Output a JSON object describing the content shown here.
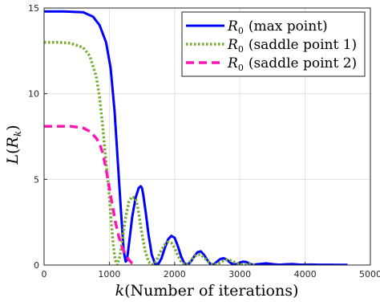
{
  "chart_data": {
    "type": "line",
    "xlabel_parts": {
      "var": "k",
      "rest": "(Number of iterations)"
    },
    "ylabel_parts": {
      "var": "L",
      "open": "(",
      "sub_var": "R",
      "sub": "k",
      "close": ")"
    },
    "xlim": [
      0,
      5000
    ],
    "ylim": [
      0,
      15
    ],
    "xticks": [
      0,
      1000,
      2000,
      3000,
      4000,
      5000
    ],
    "yticks": [
      0,
      5,
      10,
      15
    ],
    "grid": true,
    "legend_position": "top-right",
    "series": [
      {
        "legend": {
          "var": "R",
          "sub": "0",
          "text": "(max point)"
        },
        "color": "#0000ff",
        "style": "solid",
        "x": [
          0,
          300,
          600,
          750,
          850,
          950,
          1020,
          1080,
          1130,
          1180,
          1220,
          1250,
          1270,
          1300,
          1350,
          1400,
          1450,
          1480,
          1500,
          1520,
          1560,
          1600,
          1650,
          1700,
          1750,
          1800,
          1850,
          1900,
          1950,
          2000,
          2050,
          2100,
          2150,
          2200,
          2250,
          2300,
          2350,
          2400,
          2450,
          2500,
          2550,
          2600,
          2650,
          2700,
          2750,
          2800,
          2850,
          2900,
          2950,
          3000,
          3050,
          3100,
          3150,
          3200,
          3300,
          3400,
          3500,
          3600,
          3700,
          3800,
          3900,
          4000,
          4100,
          4200,
          4300,
          4400,
          4500,
          4650
        ],
        "y": [
          14.8,
          14.8,
          14.75,
          14.5,
          14.0,
          13.0,
          11.5,
          9.0,
          6.0,
          3.0,
          0.8,
          0.2,
          0.3,
          1.2,
          2.8,
          3.9,
          4.5,
          4.6,
          4.5,
          4.1,
          3.0,
          1.8,
          0.6,
          0.08,
          0.05,
          0.4,
          1.0,
          1.5,
          1.7,
          1.6,
          1.1,
          0.5,
          0.1,
          0.03,
          0.2,
          0.5,
          0.75,
          0.8,
          0.6,
          0.3,
          0.05,
          0.03,
          0.2,
          0.35,
          0.4,
          0.32,
          0.15,
          0.03,
          0.05,
          0.15,
          0.2,
          0.18,
          0.08,
          0.02,
          0.06,
          0.1,
          0.05,
          0.02,
          0.04,
          0.06,
          0.03,
          0.02,
          0.03,
          0.02,
          0.02,
          0.02,
          0.01,
          0.01
        ]
      },
      {
        "legend": {
          "var": "R",
          "sub": "0",
          "text": "(saddle point 1)"
        },
        "color": "#77ac30",
        "style": "dotted",
        "x": [
          0,
          200,
          400,
          600,
          700,
          800,
          850,
          900,
          950,
          1000,
          1030,
          1060,
          1090,
          1120,
          1160,
          1200,
          1250,
          1300,
          1350,
          1400,
          1430,
          1460,
          1500,
          1550,
          1600,
          1650,
          1700,
          1750,
          1800,
          1850,
          1900,
          1950,
          2000,
          2050,
          2100,
          2150,
          2200,
          2250,
          2300,
          2350,
          2400,
          2450,
          2500,
          2550,
          2600,
          2650,
          2700,
          2750,
          2800,
          2850,
          2900,
          2950,
          3000,
          3050,
          3100,
          3150,
          3200,
          3250
        ],
        "y": [
          13.0,
          13.0,
          12.95,
          12.7,
          12.2,
          11.0,
          9.8,
          8.0,
          6.0,
          4.0,
          2.5,
          1.2,
          0.3,
          0.0,
          0.5,
          1.5,
          2.8,
          3.7,
          4.0,
          3.9,
          3.5,
          2.8,
          1.8,
          0.8,
          0.2,
          0.02,
          0.1,
          0.5,
          0.9,
          1.2,
          1.35,
          1.3,
          1.0,
          0.55,
          0.2,
          0.03,
          0.05,
          0.25,
          0.5,
          0.62,
          0.6,
          0.45,
          0.25,
          0.08,
          0.02,
          0.05,
          0.15,
          0.25,
          0.3,
          0.28,
          0.2,
          0.1,
          0.04,
          0.02,
          0.05,
          0.06,
          0.03,
          0.02
        ]
      },
      {
        "legend": {
          "var": "R",
          "sub": "0",
          "text": "(saddle point 2)"
        },
        "color": "#ff14b4",
        "style": "dashed",
        "x": [
          0,
          200,
          400,
          600,
          700,
          800,
          850,
          900,
          950,
          1000,
          1050,
          1100,
          1150,
          1200,
          1250,
          1300,
          1350,
          1400,
          1420
        ],
        "y": [
          8.1,
          8.1,
          8.1,
          8.0,
          7.8,
          7.4,
          7.1,
          6.5,
          5.6,
          4.5,
          3.4,
          2.4,
          1.6,
          1.0,
          0.6,
          0.3,
          0.1,
          0.02,
          0.0
        ]
      }
    ]
  }
}
